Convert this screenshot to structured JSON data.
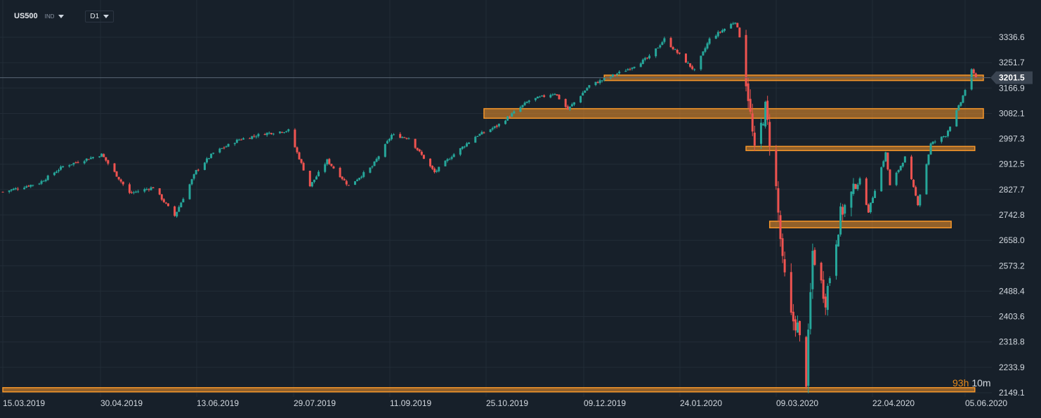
{
  "toolbar": {
    "symbol": "US500",
    "exchange": "IND",
    "timeframe": "D1"
  },
  "countdown": {
    "prefix": "93h",
    "value": "10m"
  },
  "chart_data": {
    "type": "candlestick",
    "title": "",
    "timeframe": "D1",
    "price_axis": {
      "ticks": [
        3336.6,
        3251.7,
        3166.9,
        3082.1,
        2997.3,
        2912.5,
        2827.7,
        2742.8,
        2658.0,
        2573.2,
        2488.4,
        2403.6,
        2318.8,
        2233.9,
        2149.1
      ],
      "labels": [
        "3336.6",
        "3251.7",
        "3166.9",
        "3082.1",
        "2997.3",
        "2912.5",
        "2827.7",
        "2742.8",
        "2658.0",
        "2573.2",
        "2488.4",
        "2403.6",
        "2318.8",
        "2233.9",
        "2149.1"
      ],
      "range": [
        2145,
        3400
      ]
    },
    "time_axis": {
      "labels": [
        "15.03.2019",
        "30.04.2019",
        "13.06.2019",
        "29.07.2019",
        "11.09.2019",
        "25.10.2019",
        "09.12.2019",
        "24.01.2020",
        "09.03.2020",
        "22.04.2020",
        "05.06.2020"
      ],
      "range": [
        "2019-03-15",
        "2020-06-05"
      ]
    },
    "current_price": {
      "value": 3201.5,
      "label": "3201.5"
    },
    "grid": true,
    "colors": {
      "up": "#26a69a",
      "down": "#ef5350",
      "zone": "#f5962a",
      "background": "#17202a"
    },
    "zones": [
      {
        "from": "2019-12-20",
        "to": "2020-06-05",
        "low": 3192,
        "high": 3210
      },
      {
        "from": "2019-10-25",
        "to": "2020-06-10",
        "low": 3066,
        "high": 3098
      },
      {
        "from": "2020-02-24",
        "to": "2020-06-01",
        "low": 2958,
        "high": 2972
      },
      {
        "from": "2020-03-06",
        "to": "2020-05-21",
        "low": 2700,
        "high": 2722
      },
      {
        "from": "2019-03-15",
        "to": "2020-06-01",
        "low": 2152,
        "high": 2166
      }
    ],
    "anchors": [
      [
        "2019-03-15",
        2820
      ],
      [
        "2019-04-01",
        2850
      ],
      [
        "2019-04-12",
        2905
      ],
      [
        "2019-04-30",
        2945
      ],
      [
        "2019-05-13",
        2815
      ],
      [
        "2019-05-24",
        2835
      ],
      [
        "2019-06-03",
        2740
      ],
      [
        "2019-06-13",
        2890
      ],
      [
        "2019-06-21",
        2950
      ],
      [
        "2019-07-03",
        2995
      ],
      [
        "2019-07-15",
        3015
      ],
      [
        "2019-07-26",
        3025
      ],
      [
        "2019-08-05",
        2840
      ],
      [
        "2019-08-13",
        2925
      ],
      [
        "2019-08-23",
        2840
      ],
      [
        "2019-09-03",
        2905
      ],
      [
        "2019-09-12",
        3010
      ],
      [
        "2019-09-20",
        3000
      ],
      [
        "2019-10-02",
        2885
      ],
      [
        "2019-10-10",
        2940
      ],
      [
        "2019-10-21",
        3005
      ],
      [
        "2019-10-31",
        3040
      ],
      [
        "2019-11-15",
        3125
      ],
      [
        "2019-11-27",
        3150
      ],
      [
        "2019-12-03",
        3095
      ],
      [
        "2019-12-13",
        3175
      ],
      [
        "2019-12-31",
        3230
      ],
      [
        "2020-01-10",
        3270
      ],
      [
        "2020-01-17",
        3330
      ],
      [
        "2020-01-31",
        3225
      ],
      [
        "2020-02-07",
        3330
      ],
      [
        "2020-02-19",
        3390
      ],
      [
        "2020-02-21",
        3340
      ],
      [
        "2020-02-25",
        3140
      ],
      [
        "2020-02-28",
        2950
      ],
      [
        "2020-03-04",
        3100
      ],
      [
        "2020-03-09",
        2830
      ],
      [
        "2020-03-12",
        2580
      ],
      [
        "2020-03-16",
        2400
      ],
      [
        "2020-03-19",
        2370
      ],
      [
        "2020-03-23",
        2190
      ],
      [
        "2020-03-26",
        2620
      ],
      [
        "2020-04-01",
        2460
      ],
      [
        "2020-04-08",
        2745
      ],
      [
        "2020-04-17",
        2860
      ],
      [
        "2020-04-21",
        2755
      ],
      [
        "2020-04-29",
        2950
      ],
      [
        "2020-05-01",
        2840
      ],
      [
        "2020-05-08",
        2935
      ],
      [
        "2020-05-14",
        2780
      ],
      [
        "2020-05-20",
        2980
      ],
      [
        "2020-05-27",
        3010
      ],
      [
        "2020-06-03",
        3120
      ],
      [
        "2020-06-08",
        3225
      ],
      [
        "2020-06-10",
        3201.5
      ]
    ]
  }
}
